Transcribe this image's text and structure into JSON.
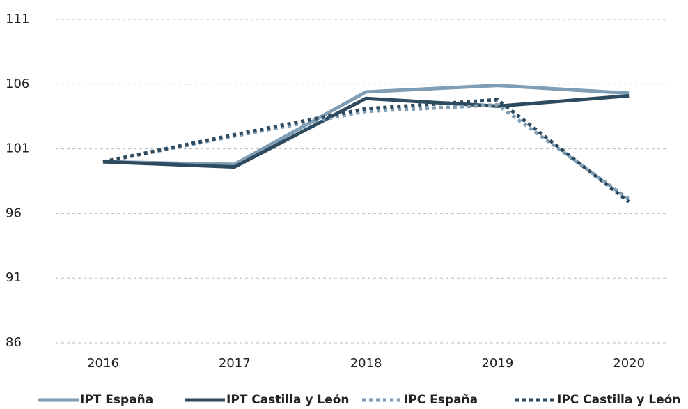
{
  "chart_data": {
    "type": "line",
    "categories": [
      "2016",
      "2017",
      "2018",
      "2019",
      "2020"
    ],
    "series": [
      {
        "name": "IPT España",
        "color": "#7f9db5",
        "line_style": "solid",
        "values": [
          100,
          99.8,
          105.4,
          105.9,
          105.3
        ]
      },
      {
        "name": "IPT Castilla y León",
        "color": "#2e4a5f",
        "line_style": "solid",
        "values": [
          100,
          99.6,
          104.9,
          104.3,
          105.1
        ]
      },
      {
        "name": "IPC España",
        "color": "#7f9db5",
        "line_style": "dotted",
        "values": [
          100,
          102.0,
          103.9,
          104.4,
          97.1
        ]
      },
      {
        "name": "IPC Castilla y León",
        "color": "#2e4a5f",
        "line_style": "dotted",
        "values": [
          100,
          102.1,
          104.1,
          104.8,
          96.9
        ]
      }
    ],
    "ylim": [
      86,
      111
    ],
    "yticks": [
      86,
      91,
      96,
      101,
      106,
      111
    ],
    "grid": true,
    "legend": "bottom"
  }
}
